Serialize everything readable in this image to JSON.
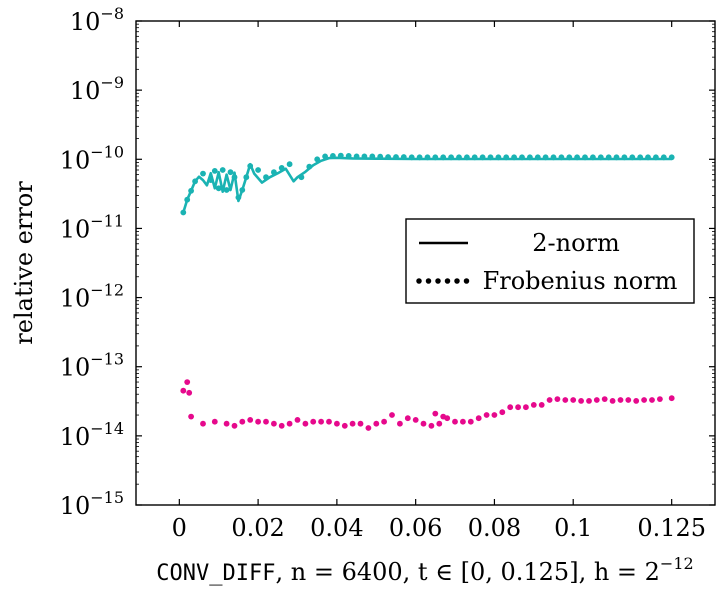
{
  "chart_data": {
    "type": "line",
    "ylabel": "relative error",
    "xlabel": {
      "prefix": "CONV_DIFF",
      "rest": ", n = 6400, t ∈ [0, 0.125], h = 2",
      "exponent": "−12"
    },
    "xlim": [
      -0.011,
      0.136
    ],
    "ylim_log10": [
      -15,
      -8
    ],
    "y_scale": "log",
    "grid": false,
    "x_ticks": [
      0,
      0.02,
      0.04,
      0.06,
      0.08,
      0.1,
      0.125
    ],
    "x_tick_labels": [
      "0",
      "0.02",
      "0.04",
      "0.06",
      "0.08",
      "0.1",
      "0.125"
    ],
    "y_ticks_exp": [
      -15,
      -14,
      -13,
      -12,
      -11,
      -10,
      -9,
      -8
    ],
    "y_tick_base": "10",
    "y_tick_exp_labels": [
      "−15",
      "−14",
      "−13",
      "−12",
      "−11",
      "−10",
      "−9",
      "−8"
    ],
    "legend": {
      "position": "right",
      "entries": [
        {
          "label": "2-norm",
          "style": "solid"
        },
        {
          "label": "Frobenius norm",
          "style": "dotted"
        }
      ]
    },
    "series": [
      {
        "style": "solid",
        "color": "#1ab3b3",
        "x": [
          0.001,
          0.002,
          0.003,
          0.004,
          0.005,
          0.006,
          0.007,
          0.008,
          0.009,
          0.01,
          0.011,
          0.012,
          0.013,
          0.014,
          0.015,
          0.016,
          0.017,
          0.018,
          0.019,
          0.021,
          0.023,
          0.025,
          0.027,
          0.029,
          0.03,
          0.032,
          0.034,
          0.036,
          0.038,
          0.04,
          0.044,
          0.05,
          0.06,
          0.07,
          0.08,
          0.09,
          0.1,
          0.11,
          0.125
        ],
        "y": [
          1.7e-11,
          2.6e-11,
          3.5e-11,
          4.8e-11,
          5.6e-11,
          5e-11,
          4.2e-11,
          6.3e-11,
          3.8e-11,
          6.5e-11,
          3.4e-11,
          6e-11,
          3.6e-11,
          6.4e-11,
          2.5e-11,
          3.6e-11,
          5.5e-11,
          8.5e-11,
          6.2e-11,
          4.6e-11,
          5.5e-11,
          6.3e-11,
          7.3e-11,
          4.8e-11,
          5.5e-11,
          6.6e-11,
          8.2e-11,
          9.5e-11,
          1.04e-10,
          1.05e-10,
          1.03e-10,
          1.02e-10,
          1.01e-10,
          1.01e-10,
          1.01e-10,
          1.01e-10,
          1.01e-10,
          1.01e-10,
          1.01e-10
        ]
      },
      {
        "style": "dotted",
        "color": "#1ab3b3",
        "x": [
          0.001,
          0.002,
          0.003,
          0.004,
          0.006,
          0.008,
          0.009,
          0.01,
          0.011,
          0.012,
          0.013,
          0.014,
          0.015,
          0.016,
          0.017,
          0.018,
          0.02,
          0.022,
          0.024,
          0.026,
          0.028,
          0.031,
          0.033,
          0.035,
          0.037,
          0.039,
          0.041,
          0.043,
          0.045,
          0.047,
          0.049,
          0.051,
          0.053,
          0.055,
          0.057,
          0.059,
          0.061,
          0.063,
          0.065,
          0.067,
          0.069,
          0.071,
          0.073,
          0.075,
          0.077,
          0.079,
          0.081,
          0.083,
          0.085,
          0.087,
          0.089,
          0.091,
          0.093,
          0.095,
          0.097,
          0.099,
          0.101,
          0.103,
          0.105,
          0.107,
          0.109,
          0.111,
          0.113,
          0.115,
          0.117,
          0.119,
          0.121,
          0.123,
          0.125
        ],
        "y": [
          1.7e-11,
          2.6e-11,
          3.5e-11,
          4.8e-11,
          6.2e-11,
          5e-11,
          6.8e-11,
          3.8e-11,
          7e-11,
          3.6e-11,
          6.5e-11,
          5.5e-11,
          2.8e-11,
          3.6e-11,
          5.5e-11,
          8e-11,
          7e-11,
          5.5e-11,
          6.5e-11,
          7.5e-11,
          8.5e-11,
          5.5e-11,
          7.8e-11,
          1e-10,
          1.1e-10,
          1.12e-10,
          1.13e-10,
          1.12e-10,
          1.1e-10,
          1.1e-10,
          1.1e-10,
          1.09e-10,
          1.08e-10,
          1.08e-10,
          1.08e-10,
          1.07e-10,
          1.07e-10,
          1.07e-10,
          1.07e-10,
          1.07e-10,
          1.07e-10,
          1.07e-10,
          1.07e-10,
          1.07e-10,
          1.07e-10,
          1.07e-10,
          1.07e-10,
          1.07e-10,
          1.07e-10,
          1.07e-10,
          1.07e-10,
          1.07e-10,
          1.07e-10,
          1.07e-10,
          1.07e-10,
          1.07e-10,
          1.07e-10,
          1.07e-10,
          1.07e-10,
          1.07e-10,
          1.07e-10,
          1.07e-10,
          1.07e-10,
          1.07e-10,
          1.07e-10,
          1.07e-10,
          1.07e-10,
          1.07e-10,
          1.07e-10
        ]
      },
      {
        "style": "dotted",
        "color": "#e6098c",
        "x": [
          0.001,
          0.002,
          0.0025,
          0.003,
          0.006,
          0.009,
          0.012,
          0.014,
          0.016,
          0.018,
          0.02,
          0.022,
          0.024,
          0.026,
          0.028,
          0.03,
          0.032,
          0.034,
          0.036,
          0.038,
          0.04,
          0.042,
          0.044,
          0.046,
          0.048,
          0.05,
          0.052,
          0.054,
          0.056,
          0.058,
          0.06,
          0.062,
          0.064,
          0.065,
          0.066,
          0.067,
          0.068,
          0.07,
          0.072,
          0.074,
          0.076,
          0.078,
          0.08,
          0.082,
          0.084,
          0.086,
          0.088,
          0.09,
          0.092,
          0.094,
          0.096,
          0.098,
          0.1,
          0.102,
          0.104,
          0.106,
          0.108,
          0.11,
          0.112,
          0.114,
          0.116,
          0.118,
          0.12,
          0.122,
          0.125
        ],
        "y": [
          4.5e-14,
          6e-14,
          4.2e-14,
          1.9e-14,
          1.5e-14,
          1.6e-14,
          1.5e-14,
          1.4e-14,
          1.6e-14,
          1.7e-14,
          1.6e-14,
          1.6e-14,
          1.5e-14,
          1.4e-14,
          1.5e-14,
          1.7e-14,
          1.5e-14,
          1.6e-14,
          1.6e-14,
          1.6e-14,
          1.5e-14,
          1.4e-14,
          1.5e-14,
          1.5e-14,
          1.3e-14,
          1.5e-14,
          1.6e-14,
          2e-14,
          1.5e-14,
          1.8e-14,
          1.7e-14,
          1.5e-14,
          1.4e-14,
          2.1e-14,
          1.5e-14,
          1.9e-14,
          1.8e-14,
          1.6e-14,
          1.6e-14,
          1.6e-14,
          1.8e-14,
          2e-14,
          2e-14,
          2.2e-14,
          2.6e-14,
          2.6e-14,
          2.6e-14,
          2.8e-14,
          2.8e-14,
          3.3e-14,
          3.4e-14,
          3.3e-14,
          3.3e-14,
          3.2e-14,
          3.2e-14,
          3.3e-14,
          3.4e-14,
          3.2e-14,
          3.3e-14,
          3.3e-14,
          3.2e-14,
          3.3e-14,
          3.3e-14,
          3.4e-14,
          3.5e-14
        ]
      }
    ]
  }
}
